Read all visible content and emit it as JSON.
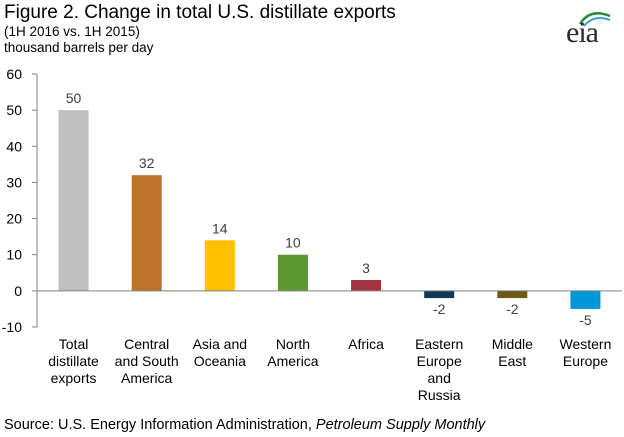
{
  "header": {
    "title": "Figure 2. Change in total U.S. distillate exports",
    "subtitle": "(1H 2016 vs. 1H 2015)",
    "units": "thousand barrels per day",
    "logo_text": "eia"
  },
  "footer": {
    "source_prefix": "Source: U.S. Energy Information Administration,",
    "source_publication": "Petroleum Supply Monthly"
  },
  "chart_data": {
    "type": "bar",
    "categories": [
      [
        "Total",
        "distillate",
        "exports"
      ],
      [
        "Central",
        "and South",
        "America"
      ],
      [
        "Asia and",
        "Oceania"
      ],
      [
        "North",
        "America"
      ],
      [
        "Africa"
      ],
      [
        "Eastern",
        "Europe",
        "and",
        "Russia"
      ],
      [
        "Middle",
        "East"
      ],
      [
        "Western",
        "Europe"
      ]
    ],
    "values": [
      50,
      32,
      14,
      10,
      3,
      -2,
      -2,
      -5
    ],
    "data_labels": [
      "50",
      "32",
      "14",
      "10",
      "3",
      "-2",
      "-2",
      "-5"
    ],
    "colors": [
      "#bfbfbf",
      "#bd732a",
      "#ffc000",
      "#5d9732",
      "#a33340",
      "#0f3a55",
      "#6b5a14",
      "#0096d7"
    ],
    "ylim": [
      -10,
      60
    ],
    "yticks": [
      -10,
      0,
      10,
      20,
      30,
      40,
      50,
      60
    ],
    "grid": false
  }
}
